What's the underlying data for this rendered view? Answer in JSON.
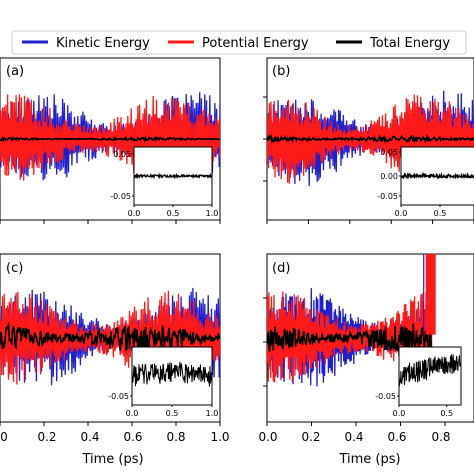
{
  "legend": {
    "placement": "top",
    "entries": [
      {
        "label": "Kinetic Energy",
        "color": "#1f1fd0"
      },
      {
        "label": "Potential Energy",
        "color": "#ff1a1a"
      },
      {
        "label": "Total Energy",
        "color": "#000000"
      }
    ]
  },
  "xlabel": "Time (ps)",
  "chart_data": [
    {
      "type": "line",
      "panel": "(a)",
      "xlim": [
        0,
        1.0
      ],
      "series": [
        {
          "name": "Kinetic Energy",
          "color": "#1f1fd0",
          "amplitude": 1.0,
          "offset": 0
        },
        {
          "name": "Potential Energy",
          "color": "#ff1a1a",
          "amplitude": 0.95,
          "offset": 0
        },
        {
          "name": "Total Energy",
          "color": "#000000",
          "amplitude": 0.03,
          "offset": 0
        }
      ],
      "inset": {
        "xlim": [
          0,
          1.0
        ],
        "ylim": [
          -0.08,
          0.08
        ],
        "xticks": [
          "0.0",
          "0.5",
          "1.0"
        ],
        "yticks": [
          "0.05",
          "-0.05"
        ],
        "noise": 0.003
      }
    },
    {
      "type": "line",
      "panel": "(b)",
      "xlim": [
        0,
        1.0
      ],
      "series": [
        {
          "name": "Kinetic Energy",
          "color": "#1f1fd0",
          "amplitude": 1.0,
          "offset": 0
        },
        {
          "name": "Potential Energy",
          "color": "#ff1a1a",
          "amplitude": 0.95,
          "offset": 0
        },
        {
          "name": "Total Energy",
          "color": "#000000",
          "amplitude": 0.06,
          "offset": 0
        }
      ],
      "inset": {
        "xlim": [
          0,
          1.0
        ],
        "ylim": [
          -0.08,
          0.08
        ],
        "xticks": [
          "0.0",
          "0.5",
          "1.0"
        ],
        "yticks": [
          "0.05",
          "0.00",
          "-0.05"
        ],
        "noise": 0.005
      }
    },
    {
      "type": "line",
      "panel": "(c)",
      "xlim": [
        0,
        1.0
      ],
      "xticks": [
        "0",
        "0.2",
        "0.4",
        "0.6",
        "0.8",
        "1.0"
      ],
      "series": [
        {
          "name": "Kinetic Energy",
          "color": "#1f1fd0",
          "amplitude": 1.0,
          "offset": 0
        },
        {
          "name": "Potential Energy",
          "color": "#ff1a1a",
          "amplitude": 0.95,
          "offset": 0
        },
        {
          "name": "Total Energy",
          "color": "#000000",
          "amplitude": 0.3,
          "offset": 0
        }
      ],
      "inset": {
        "xlim": [
          0,
          1.0
        ],
        "ylim": [
          -0.08,
          0.08
        ],
        "xticks": [
          "0.0",
          "0.5",
          "1.0"
        ],
        "yticks": [
          "-0.05"
        ],
        "noise": 0.03
      }
    },
    {
      "type": "line",
      "panel": "(d)",
      "xlim": [
        0,
        1.0
      ],
      "xticks": [
        "0.0",
        "0.2",
        "0.4",
        "0.6",
        "0.8"
      ],
      "series": [
        {
          "name": "Kinetic Energy",
          "color": "#1f1fd0",
          "amplitude": 1.0,
          "offset": 0
        },
        {
          "name": "Potential Energy",
          "color": "#ff1a1a",
          "amplitude": 0.95,
          "offset": 0
        },
        {
          "name": "Total Energy",
          "color": "#000000",
          "amplitude": 0.3,
          "offset": 0
        }
      ],
      "inset": {
        "xlim": [
          0,
          0.65
        ],
        "ylim": [
          -0.08,
          0.08
        ],
        "xticks": [
          "0.0",
          "0.5"
        ],
        "yticks": [
          "-0.05"
        ],
        "noise": 0.03
      }
    }
  ],
  "panel_labels": [
    "(a)",
    "(b)",
    "(c)",
    "(d)"
  ],
  "xticks_c": [
    "0",
    "0.2",
    "0.4",
    "0.6",
    "0.8",
    "1.0"
  ],
  "xticks_d": [
    "0.0",
    "0.2",
    "0.4",
    "0.6",
    "0.8"
  ]
}
